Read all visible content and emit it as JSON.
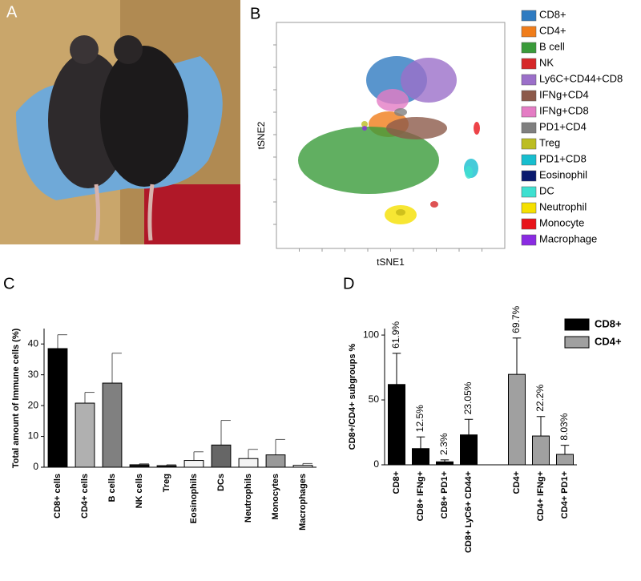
{
  "panel_a": {
    "label": "A"
  },
  "chart_data": [
    {
      "type": "tsne",
      "panel_label": "B",
      "xlabel": "tSNE1",
      "ylabel": "tSNE2",
      "legend": [
        {
          "name": "CD8+",
          "color": "#2f7bc1"
        },
        {
          "name": "CD4+",
          "color": "#f07d1a"
        },
        {
          "name": "B cell",
          "color": "#3a9b3a"
        },
        {
          "name": "NK",
          "color": "#d62728"
        },
        {
          "name": "Ly6C+CD44+CD8",
          "color": "#9b6fc9"
        },
        {
          "name": "IFNg+CD4",
          "color": "#8c5a4a"
        },
        {
          "name": "IFNg+CD8",
          "color": "#e47cc4"
        },
        {
          "name": "PD1+CD4",
          "color": "#7f7f7f"
        },
        {
          "name": "Treg",
          "color": "#bcbd22"
        },
        {
          "name": "PD1+CD8",
          "color": "#17becf"
        },
        {
          "name": "Eosinophil",
          "color": "#0a1a6e"
        },
        {
          "name": "DC",
          "color": "#3ee0d0"
        },
        {
          "name": "Neutrophil",
          "color": "#f5e000"
        },
        {
          "name": "Monocyte",
          "color": "#e8141a"
        },
        {
          "name": "Macrophage",
          "color": "#8a2be2"
        }
      ]
    },
    {
      "type": "bar",
      "panel_label": "C",
      "ylabel": "Total amount of Immune cells (%)",
      "categories": [
        "CD8+ cells",
        "CD4+ cells",
        "B cells",
        "NK cells",
        "Treg",
        "Eosinophils",
        "DCs",
        "Neutrophils",
        "Monocytes",
        "Macrophages"
      ],
      "values": [
        38.5,
        20.8,
        27.3,
        0.8,
        0.5,
        2.2,
        7.2,
        2.8,
        4.0,
        0.6
      ],
      "errors": [
        4.5,
        3.5,
        9.7,
        0.3,
        0.3,
        2.8,
        8.0,
        3.0,
        5.0,
        0.6
      ],
      "colors": [
        "#000000",
        "#b0b0b0",
        "#808080",
        "#111111",
        "#111111",
        "#f4f4f4",
        "#666666",
        "#f4f4f4",
        "#999999",
        "#f4f4f4"
      ],
      "ylim": [
        0,
        45
      ],
      "yticks": [
        0,
        10,
        20,
        30,
        40
      ]
    },
    {
      "type": "grouped-bar",
      "panel_label": "D",
      "ylabel": "CD8+/CD4+ subgroups %",
      "categories": [
        "CD8+",
        "CD8+ IFNg+",
        "CD8+ PD1+",
        "CD8+ LyC6+ CD44+",
        "CD4+",
        "CD4+ IFNg+",
        "CD4+ PD1+"
      ],
      "series": [
        {
          "name": "CD8+",
          "color": "#000000",
          "values": [
            61.9,
            12.5,
            2.3,
            23.05,
            null,
            null,
            null
          ],
          "errors": [
            24,
            9,
            1.5,
            12,
            null,
            null,
            null
          ],
          "value_labels": [
            "61.9%",
            "12.5%",
            "2.3%",
            "23.05%",
            null,
            null,
            null
          ]
        },
        {
          "name": "CD4+",
          "color": "#a0a0a0",
          "values": [
            null,
            null,
            null,
            null,
            69.7,
            22.2,
            8.03
          ],
          "errors": [
            null,
            null,
            null,
            null,
            28,
            15,
            7
          ],
          "value_labels": [
            null,
            null,
            null,
            null,
            "69.7%",
            "22.2%",
            "8.03%"
          ]
        }
      ],
      "ylim": [
        0,
        105
      ],
      "yticks": [
        0,
        50,
        100
      ]
    }
  ]
}
